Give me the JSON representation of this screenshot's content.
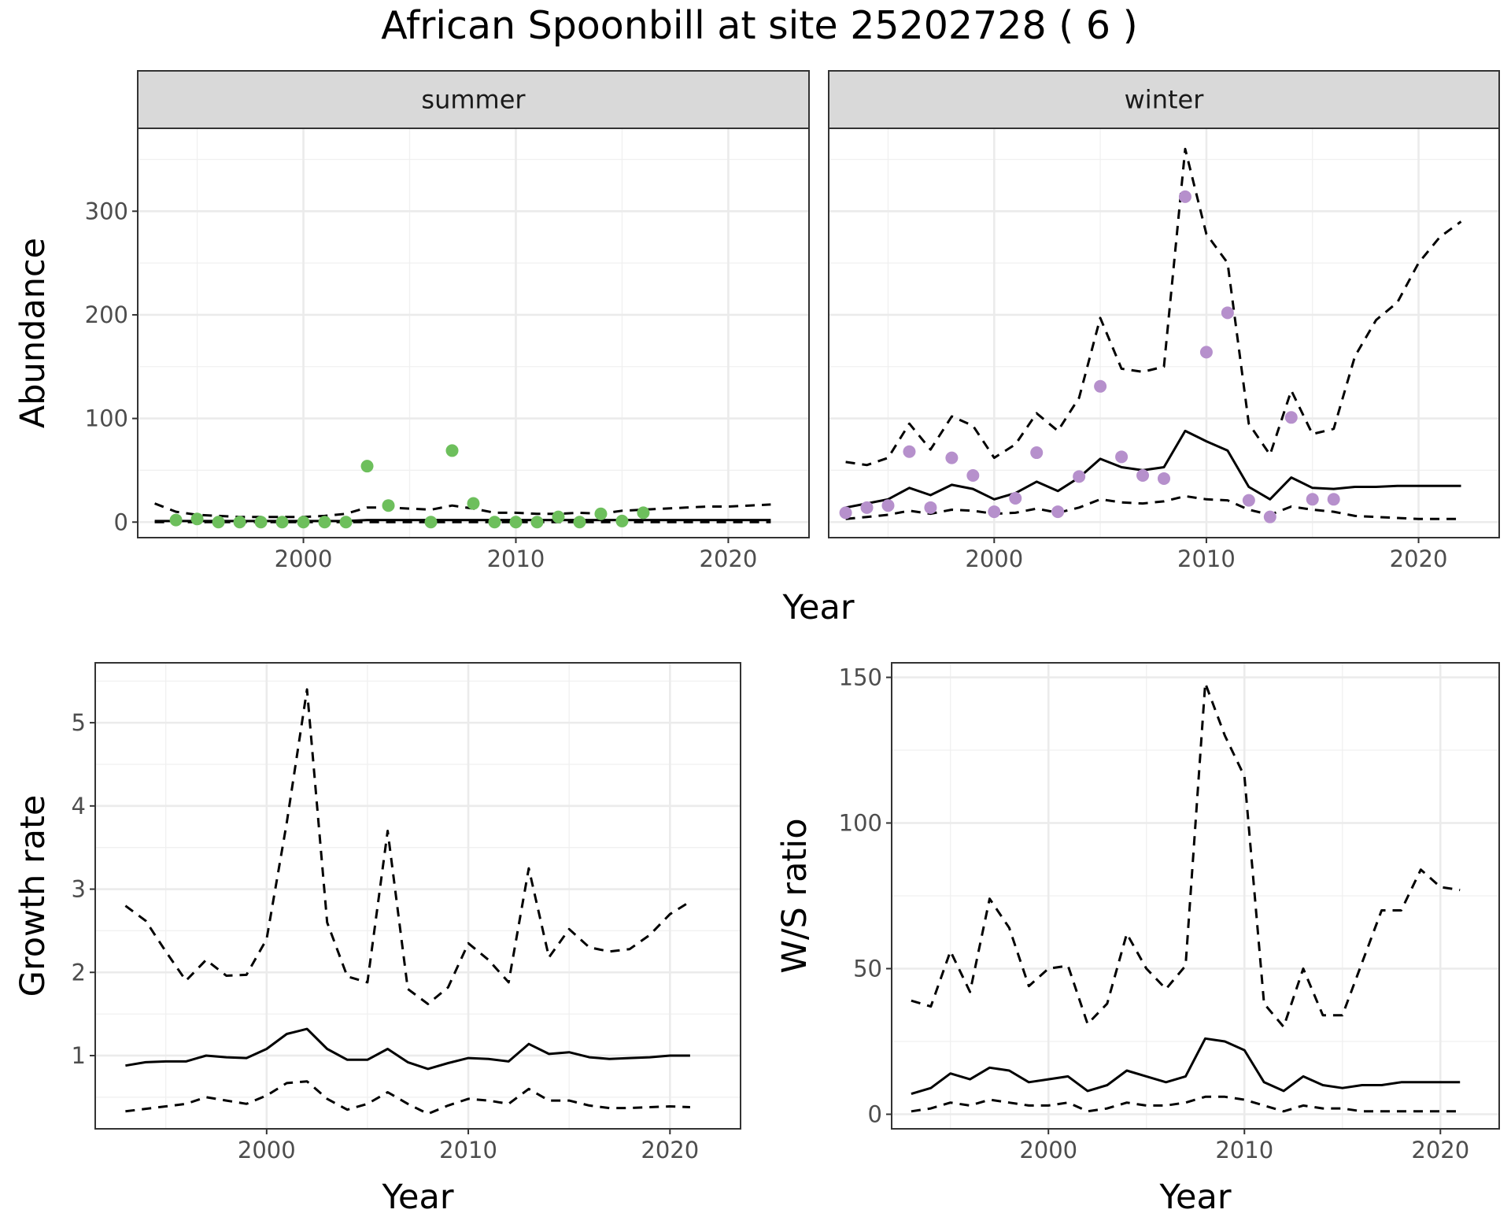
{
  "title": "African Spoonbill at site 25202728 ( 6 )",
  "colors": {
    "summer_points": "#6dbf5c",
    "winter_points": "#b690cc",
    "lines": "#000000"
  },
  "chart_data": [
    {
      "type": "line",
      "panel": "summer",
      "strip_label": "summer",
      "xlabel": "Year",
      "ylabel": "Abundance",
      "xlim": [
        1992.2,
        2023.8
      ],
      "ylim": [
        -15,
        380
      ],
      "xticks": [
        2000,
        2010,
        2020
      ],
      "yticks": [
        0,
        100,
        200,
        300
      ],
      "grid": true,
      "points": {
        "x": [
          1994,
          1995,
          1996,
          1997,
          1998,
          1999,
          2000,
          2001,
          2002,
          2003,
          2004,
          2006,
          2007,
          2008,
          2009,
          2010,
          2011,
          2012,
          2013,
          2014,
          2015,
          2016
        ],
        "y": [
          2,
          3,
          0,
          0,
          0,
          0,
          0,
          0,
          0,
          54,
          16,
          0,
          69,
          18,
          0,
          0,
          0,
          5,
          0,
          8,
          1,
          9
        ]
      },
      "series": [
        {
          "name": "",
          "style": "solid",
          "x": [
            1993,
            1994,
            1995,
            1996,
            1997,
            1998,
            1999,
            2000,
            2001,
            2002,
            2003,
            2004,
            2005,
            2006,
            2007,
            2008,
            2009,
            2010,
            2011,
            2012,
            2013,
            2014,
            2015,
            2016,
            2017,
            2018,
            2019,
            2020,
            2021,
            2022
          ],
          "y": [
            1,
            1,
            1,
            1,
            1,
            1,
            1,
            1,
            1,
            1,
            2,
            2,
            2,
            2,
            2,
            2,
            2,
            2,
            2,
            2,
            2,
            2,
            2,
            2,
            2,
            2,
            2,
            2,
            2,
            2
          ]
        },
        {
          "name": "",
          "style": "dashed",
          "x": [
            1993,
            1994,
            1995,
            1996,
            1997,
            1998,
            1999,
            2000,
            2001,
            2002,
            2003,
            2004,
            2005,
            2006,
            2007,
            2008,
            2009,
            2010,
            2011,
            2012,
            2013,
            2014,
            2015,
            2016,
            2017,
            2018,
            2019,
            2020,
            2021,
            2022
          ],
          "y": [
            18,
            10,
            7,
            6,
            5,
            5,
            5,
            5,
            6,
            8,
            14,
            14,
            13,
            12,
            16,
            13,
            9,
            9,
            8,
            8,
            9,
            8,
            11,
            12,
            13,
            14,
            15,
            15,
            16,
            17
          ]
        },
        {
          "name": "",
          "style": "dashed",
          "x": [
            1993,
            1994,
            1995,
            1996,
            1997,
            1998,
            1999,
            2000,
            2001,
            2002,
            2003,
            2004,
            2005,
            2006,
            2007,
            2008,
            2009,
            2010,
            2011,
            2012,
            2013,
            2014,
            2015,
            2016,
            2017,
            2018,
            2019,
            2020,
            2021,
            2022
          ],
          "y": [
            0,
            0,
            0,
            0,
            0,
            0,
            0,
            0,
            0,
            0,
            0,
            0,
            0,
            0,
            0,
            0,
            0,
            0,
            0,
            0,
            0,
            0,
            0,
            0,
            0,
            0,
            0,
            0,
            0,
            0
          ]
        }
      ]
    },
    {
      "type": "line",
      "panel": "winter",
      "strip_label": "winter",
      "xlabel": "Year",
      "ylabel": "Abundance",
      "xlim": [
        1992.2,
        2023.8
      ],
      "ylim": [
        -15,
        380
      ],
      "xticks": [
        2000,
        2010,
        2020
      ],
      "yticks": [
        0,
        100,
        200,
        300
      ],
      "grid": true,
      "points": {
        "x": [
          1993,
          1994,
          1995,
          1996,
          1997,
          1998,
          1999,
          2000,
          2001,
          2002,
          2003,
          2004,
          2005,
          2006,
          2007,
          2008,
          2009,
          2010,
          2011,
          2012,
          2013,
          2014,
          2015,
          2016
        ],
        "y": [
          9,
          14,
          16,
          68,
          14,
          62,
          45,
          10,
          23,
          67,
          10,
          44,
          131,
          63,
          45,
          42,
          314,
          164,
          202,
          21,
          5,
          101,
          22,
          22
        ]
      },
      "series": [
        {
          "name": "",
          "style": "solid",
          "x": [
            1993,
            1994,
            1995,
            1996,
            1997,
            1998,
            1999,
            2000,
            2001,
            2002,
            2003,
            2004,
            2005,
            2006,
            2007,
            2008,
            2009,
            2010,
            2011,
            2012,
            2013,
            2014,
            2015,
            2016,
            2017,
            2018,
            2019,
            2020,
            2021,
            2022
          ],
          "y": [
            14,
            18,
            22,
            33,
            26,
            36,
            32,
            22,
            28,
            39,
            30,
            43,
            61,
            53,
            50,
            53,
            88,
            78,
            69,
            34,
            22,
            43,
            33,
            32,
            34,
            34,
            35,
            35,
            35,
            35
          ]
        },
        {
          "name": "",
          "style": "dashed",
          "x": [
            1993,
            1994,
            1995,
            1996,
            1997,
            1998,
            1999,
            2000,
            2001,
            2002,
            2003,
            2004,
            2005,
            2006,
            2007,
            2008,
            2009,
            2010,
            2011,
            2012,
            2013,
            2014,
            2015,
            2016,
            2017,
            2018,
            2019,
            2020,
            2021,
            2022
          ],
          "y": [
            58,
            55,
            62,
            95,
            70,
            102,
            93,
            62,
            75,
            105,
            88,
            120,
            197,
            148,
            145,
            150,
            360,
            278,
            250,
            95,
            65,
            127,
            85,
            90,
            160,
            195,
            212,
            250,
            275,
            290
          ]
        },
        {
          "name": "",
          "style": "dashed",
          "x": [
            1993,
            1994,
            1995,
            1996,
            1997,
            1998,
            1999,
            2000,
            2001,
            2002,
            2003,
            2004,
            2005,
            2006,
            2007,
            2008,
            2009,
            2010,
            2011,
            2012,
            2013,
            2014,
            2015,
            2016,
            2017,
            2018,
            2019,
            2020,
            2021,
            2022
          ],
          "y": [
            3,
            5,
            7,
            11,
            8,
            12,
            11,
            8,
            9,
            13,
            9,
            14,
            22,
            19,
            18,
            20,
            25,
            22,
            21,
            12,
            7,
            15,
            12,
            10,
            6,
            5,
            4,
            3,
            3,
            3
          ]
        }
      ]
    },
    {
      "type": "line",
      "panel": "growth",
      "xlabel": "Year",
      "ylabel": "Growth rate",
      "xlim": [
        1991.5,
        2023.5
      ],
      "ylim": [
        0.12,
        5.72
      ],
      "xticks": [
        2000,
        2010,
        2020
      ],
      "yticks": [
        1,
        2,
        3,
        4,
        5
      ],
      "grid": true,
      "series": [
        {
          "name": "",
          "style": "solid",
          "x": [
            1993,
            1994,
            1995,
            1996,
            1997,
            1998,
            1999,
            2000,
            2001,
            2002,
            2003,
            2004,
            2005,
            2006,
            2007,
            2008,
            2009,
            2010,
            2011,
            2012,
            2013,
            2014,
            2015,
            2016,
            2017,
            2018,
            2019,
            2020,
            2021
          ],
          "y": [
            0.88,
            0.92,
            0.93,
            0.93,
            1.0,
            0.98,
            0.97,
            1.08,
            1.26,
            1.32,
            1.08,
            0.95,
            0.95,
            1.08,
            0.92,
            0.84,
            0.91,
            0.97,
            0.96,
            0.93,
            1.14,
            1.02,
            1.04,
            0.98,
            0.96,
            0.97,
            0.98,
            1.0,
            1.0
          ]
        },
        {
          "name": "",
          "style": "dashed",
          "x": [
            1993,
            1994,
            1995,
            1996,
            1997,
            1998,
            1999,
            2000,
            2001,
            2002,
            2003,
            2004,
            2005,
            2006,
            2007,
            2008,
            2009,
            2010,
            2011,
            2012,
            2013,
            2014,
            2015,
            2016,
            2017,
            2018,
            2019,
            2020,
            2021
          ],
          "y": [
            2.8,
            2.62,
            2.25,
            1.9,
            2.15,
            1.96,
            1.97,
            2.4,
            3.8,
            5.4,
            2.6,
            1.95,
            1.88,
            3.7,
            1.8,
            1.62,
            1.82,
            2.35,
            2.15,
            1.88,
            3.25,
            2.18,
            2.52,
            2.3,
            2.25,
            2.28,
            2.45,
            2.7,
            2.85
          ]
        },
        {
          "name": "",
          "style": "dashed",
          "x": [
            1993,
            1994,
            1995,
            1996,
            1997,
            1998,
            1999,
            2000,
            2001,
            2002,
            2003,
            2004,
            2005,
            2006,
            2007,
            2008,
            2009,
            2010,
            2011,
            2012,
            2013,
            2014,
            2015,
            2016,
            2017,
            2018,
            2019,
            2020,
            2021
          ],
          "y": [
            0.33,
            0.36,
            0.39,
            0.42,
            0.5,
            0.46,
            0.42,
            0.52,
            0.67,
            0.69,
            0.48,
            0.35,
            0.42,
            0.56,
            0.42,
            0.3,
            0.4,
            0.48,
            0.46,
            0.42,
            0.6,
            0.46,
            0.46,
            0.4,
            0.37,
            0.37,
            0.38,
            0.39,
            0.38
          ]
        }
      ]
    },
    {
      "type": "line",
      "panel": "ws_ratio",
      "xlabel": "Year",
      "ylabel": "W/S ratio",
      "xlim": [
        1992.0,
        2023.0
      ],
      "ylim": [
        -5,
        155
      ],
      "xticks": [
        2000,
        2010,
        2020
      ],
      "yticks": [
        0,
        50,
        100,
        150
      ],
      "grid": true,
      "series": [
        {
          "name": "",
          "style": "solid",
          "x": [
            1993,
            1994,
            1995,
            1996,
            1997,
            1998,
            1999,
            2000,
            2001,
            2002,
            2003,
            2004,
            2005,
            2006,
            2007,
            2008,
            2009,
            2010,
            2011,
            2012,
            2013,
            2014,
            2015,
            2016,
            2017,
            2018,
            2019,
            2020,
            2021
          ],
          "y": [
            7,
            9,
            14,
            12,
            16,
            15,
            11,
            12,
            13,
            8,
            10,
            15,
            13,
            11,
            13,
            26,
            25,
            22,
            11,
            8,
            13,
            10,
            9,
            10,
            10,
            11,
            11,
            11,
            11
          ]
        },
        {
          "name": "",
          "style": "dashed",
          "x": [
            1993,
            1994,
            1995,
            1996,
            1997,
            1998,
            1999,
            2000,
            2001,
            2002,
            2003,
            2004,
            2005,
            2006,
            2007,
            2008,
            2009,
            2010,
            2011,
            2012,
            2013,
            2014,
            2015,
            2016,
            2017,
            2018,
            2019,
            2020,
            2021
          ],
          "y": [
            39,
            37,
            56,
            42,
            74,
            64,
            44,
            50,
            51,
            31,
            38,
            62,
            50,
            43,
            51,
            148,
            130,
            116,
            38,
            30,
            50,
            34,
            34,
            52,
            70,
            70,
            84,
            78,
            77
          ]
        },
        {
          "name": "",
          "style": "dashed",
          "x": [
            1993,
            1994,
            1995,
            1996,
            1997,
            1998,
            1999,
            2000,
            2001,
            2002,
            2003,
            2004,
            2005,
            2006,
            2007,
            2008,
            2009,
            2010,
            2011,
            2012,
            2013,
            2014,
            2015,
            2016,
            2017,
            2018,
            2019,
            2020,
            2021
          ],
          "y": [
            1,
            2,
            4,
            3,
            5,
            4,
            3,
            3,
            4,
            1,
            2,
            4,
            3,
            3,
            4,
            6,
            6,
            5,
            3,
            1,
            3,
            2,
            2,
            1,
            1,
            1,
            1,
            1,
            1
          ]
        }
      ]
    }
  ]
}
